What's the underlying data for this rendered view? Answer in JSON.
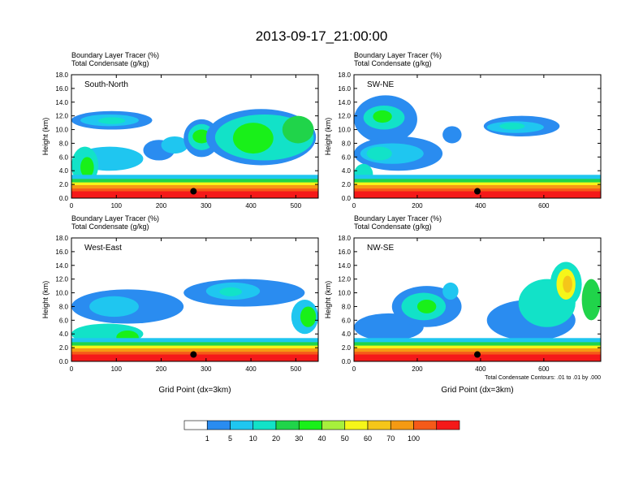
{
  "title": "2013-09-17_21:00:00",
  "chart_data": [
    {
      "type": "heatmap",
      "panel_label": "South-North",
      "subtitle_line1": "Boundary Layer Tracer   (%)",
      "subtitle_line2": "Total Condensate   (g/kg)",
      "ylabel": "Height (km)",
      "xlabel": "",
      "xlim": [
        0,
        550
      ],
      "ylim": [
        0,
        18
      ],
      "xticks": [
        "0",
        "100",
        "200",
        "300",
        "400",
        "500"
      ],
      "yticks": [
        "0.0",
        "2.0",
        "4.0",
        "6.0",
        "8.0",
        "10.0",
        "12.0",
        "14.0",
        "16.0",
        "18.0"
      ],
      "marker": {
        "x": 272,
        "y": 1.0
      },
      "note": ""
    },
    {
      "type": "heatmap",
      "panel_label": "SW-NE",
      "subtitle_line1": "Boundary Layer Tracer   (%)",
      "subtitle_line2": "Total Condensate   (g/kg)",
      "ylabel": "Height (km)",
      "xlabel": "",
      "xlim": [
        0,
        780
      ],
      "ylim": [
        0,
        18
      ],
      "xticks": [
        "0",
        "200",
        "400",
        "600"
      ],
      "yticks": [
        "0.0",
        "2.0",
        "4.0",
        "6.0",
        "8.0",
        "10.0",
        "12.0",
        "14.0",
        "16.0",
        "18.0"
      ],
      "marker": {
        "x": 390,
        "y": 1.0
      },
      "note": ""
    },
    {
      "type": "heatmap",
      "panel_label": "West-East",
      "subtitle_line1": "Boundary Layer Tracer   (%)",
      "subtitle_line2": "Total Condensate   (g/kg)",
      "ylabel": "Height (km)",
      "xlabel": "Grid Point (dx=3km)",
      "xlim": [
        0,
        550
      ],
      "ylim": [
        0,
        18
      ],
      "xticks": [
        "0",
        "100",
        "200",
        "300",
        "400",
        "500"
      ],
      "yticks": [
        "0.0",
        "2.0",
        "4.0",
        "6.0",
        "8.0",
        "10.0",
        "12.0",
        "14.0",
        "16.0",
        "18.0"
      ],
      "marker": {
        "x": 272,
        "y": 1.0
      },
      "note": ""
    },
    {
      "type": "heatmap",
      "panel_label": "NW-SE",
      "subtitle_line1": "Boundary Layer Tracer   (%)",
      "subtitle_line2": "Total Condensate   (g/kg)",
      "ylabel": "Height (km)",
      "xlabel": "Grid Point (dx=3km)",
      "xlim": [
        0,
        780
      ],
      "ylim": [
        0,
        18
      ],
      "xticks": [
        "0",
        "200",
        "400",
        "600"
      ],
      "yticks": [
        "0.0",
        "2.0",
        "4.0",
        "6.0",
        "8.0",
        "10.0",
        "12.0",
        "14.0",
        "16.0",
        "18.0"
      ],
      "marker": {
        "x": 390,
        "y": 1.0
      },
      "note": "Total Condensate Contours: .01 to .01 by .000"
    }
  ],
  "colorbar": {
    "labels": [
      "1",
      "5",
      "10",
      "20",
      "30",
      "40",
      "50",
      "60",
      "70",
      "100"
    ],
    "colors": [
      "#ffffff",
      "#2a8cf0",
      "#1fc6f0",
      "#12e2c8",
      "#20d44a",
      "#19f019",
      "#a7f03c",
      "#f6f619",
      "#f5c619",
      "#f59a13",
      "#f55a19",
      "#f51919"
    ]
  },
  "palette": {
    "blue": "#2a8cf0",
    "cyan": "#1fc6f0",
    "teal": "#12e2c8",
    "green": "#20d44a",
    "lime": "#19f019",
    "yellowgreen": "#a7f03c",
    "yellow": "#f6f619",
    "gold": "#f5c619",
    "orange": "#f59a13",
    "redorange": "#f55a19",
    "red": "#f51919"
  }
}
